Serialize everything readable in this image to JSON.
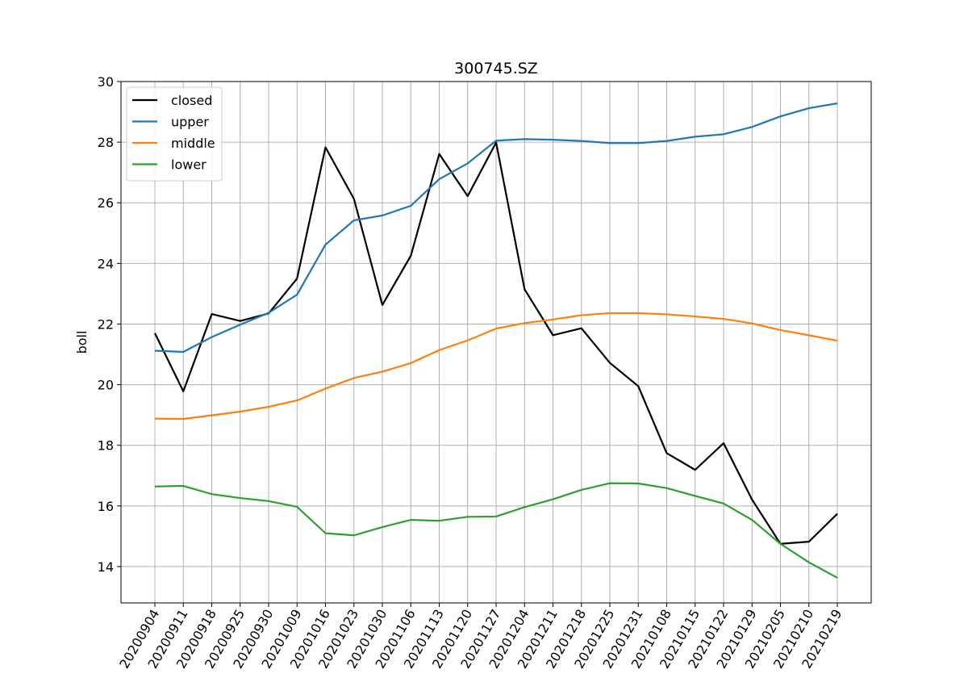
{
  "chart_data": {
    "type": "line",
    "title": "300745.SZ",
    "xlabel": "",
    "ylabel": "boll",
    "ylim": [
      12.8,
      30.0
    ],
    "yticks": [
      14,
      16,
      18,
      20,
      22,
      24,
      26,
      28,
      30
    ],
    "grid": true,
    "legend_position": "top-left",
    "categories": [
      "20200904",
      "20200911",
      "20200918",
      "20200925",
      "20200930",
      "20201009",
      "20201016",
      "20201023",
      "20201030",
      "20201106",
      "20201113",
      "20201120",
      "20201127",
      "20201204",
      "20201211",
      "20201218",
      "20201225",
      "20201231",
      "20210108",
      "20210115",
      "20210122",
      "20210129",
      "20210205",
      "20210210",
      "20210219"
    ],
    "series": [
      {
        "name": "closed",
        "color": "#000000",
        "values": [
          21.7,
          19.78,
          22.33,
          22.1,
          22.35,
          23.5,
          27.83,
          26.13,
          22.63,
          24.25,
          27.61,
          26.22,
          27.99,
          23.15,
          21.63,
          21.86,
          20.72,
          19.95,
          17.74,
          17.19,
          18.07,
          16.21,
          14.75,
          14.82,
          15.74
        ]
      },
      {
        "name": "upper",
        "color": "#1f77b4",
        "values": [
          21.12,
          21.08,
          21.57,
          21.98,
          22.37,
          22.97,
          24.62,
          25.42,
          25.58,
          25.9,
          26.78,
          27.3,
          28.05,
          28.1,
          28.08,
          28.04,
          27.97,
          27.97,
          28.04,
          28.18,
          28.26,
          28.5,
          28.85,
          29.12,
          29.28
        ]
      },
      {
        "name": "middle",
        "color": "#ff7f0e",
        "values": [
          18.88,
          18.87,
          18.99,
          19.11,
          19.27,
          19.48,
          19.87,
          20.22,
          20.43,
          20.71,
          21.14,
          21.46,
          21.85,
          22.03,
          22.15,
          22.29,
          22.36,
          22.36,
          22.32,
          22.25,
          22.17,
          22.02,
          21.8,
          21.63,
          21.45
        ]
      },
      {
        "name": "lower",
        "color": "#2ca02c",
        "values": [
          16.64,
          16.66,
          16.39,
          16.26,
          16.16,
          15.97,
          15.1,
          15.03,
          15.3,
          15.54,
          15.51,
          15.64,
          15.65,
          15.96,
          16.22,
          16.53,
          16.75,
          16.74,
          16.59,
          16.33,
          16.08,
          15.54,
          14.75,
          14.14,
          13.63
        ]
      }
    ]
  }
}
